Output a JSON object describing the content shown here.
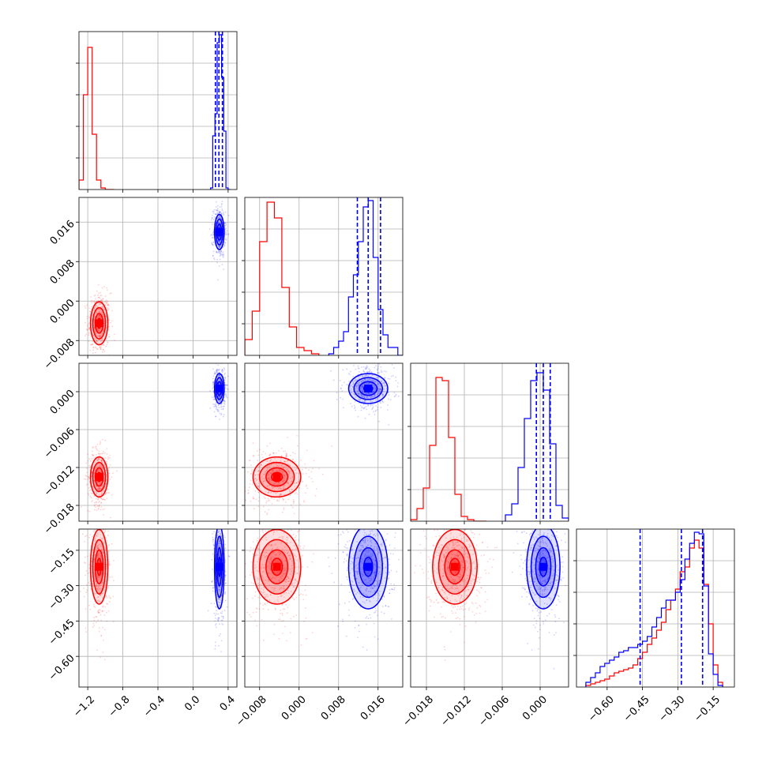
{
  "chart_data": {
    "type": "corner",
    "parameters": [
      {
        "name": "",
        "range": [
          -1.3,
          0.5
        ],
        "ticks": [
          -1.2,
          -0.8,
          -0.4,
          0.0,
          0.4
        ],
        "tick_labels": [
          "−1.2",
          "−0.8",
          "−0.4",
          "0.0",
          "0.4"
        ]
      },
      {
        "name": "",
        "range": [
          -0.011,
          0.021
        ],
        "ticks": [
          -0.008,
          0.0,
          0.008,
          0.016
        ],
        "tick_labels": [
          "−0.008",
          "0.000",
          "0.008",
          "0.016"
        ]
      },
      {
        "name": "",
        "range": [
          -0.0205,
          0.0045
        ],
        "ticks": [
          -0.018,
          -0.012,
          -0.006,
          0.0
        ],
        "tick_labels": [
          "−0.018",
          "−0.012",
          "−0.006",
          "0.000"
        ]
      },
      {
        "name": "",
        "range": [
          -0.73,
          -0.06
        ],
        "ticks": [
          -0.6,
          -0.45,
          -0.3,
          -0.15
        ],
        "tick_labels": [
          "−0.60",
          "−0.45",
          "−0.30",
          "−0.15"
        ]
      }
    ],
    "series": [
      {
        "color": "#ff0000",
        "mean": [
          -1.07,
          -0.0045,
          -0.0135,
          -0.22
        ],
        "std": [
          0.045,
          0.0022,
          0.0016,
          0.08
        ],
        "hist": [
          {
            "edges_x": [
              -1.3,
              -1.25,
              -1.2,
              -1.15,
              -1.1,
              -1.05,
              -1.0,
              -0.95,
              -0.9
            ],
            "values": [
              0.06,
              0.6,
              0.9,
              0.35,
              0.06,
              0.01,
              0.0,
              0.0
            ]
          },
          {
            "edges_x": [
              -0.011,
              -0.0095,
              -0.008,
              -0.0065,
              -0.005,
              -0.0035,
              -0.002,
              -0.0005,
              0.001,
              0.0025,
              0.004
            ],
            "values": [
              0.1,
              0.28,
              0.72,
              0.97,
              0.87,
              0.43,
              0.18,
              0.05,
              0.03,
              0.01
            ]
          },
          {
            "edges_x": [
              -0.0205,
              -0.0195,
              -0.0185,
              -0.0175,
              -0.0165,
              -0.0155,
              -0.0145,
              -0.0135,
              -0.0125,
              -0.0115,
              -0.0105,
              -0.0095,
              -0.0085
            ],
            "values": [
              0.01,
              0.08,
              0.21,
              0.48,
              0.91,
              0.89,
              0.53,
              0.17,
              0.03,
              0.01,
              0.0,
              0.0
            ]
          },
          {
            "edges_x": [
              -0.69,
              -0.67,
              -0.65,
              -0.63,
              -0.61,
              -0.59,
              -0.57,
              -0.55,
              -0.53,
              -0.51,
              -0.49,
              -0.47,
              -0.45,
              -0.43,
              -0.41,
              -0.39,
              -0.37,
              -0.35,
              -0.33,
              -0.31,
              -0.29,
              -0.27,
              -0.25,
              -0.23,
              -0.21,
              -0.19,
              -0.17,
              -0.15,
              -0.13,
              -0.11
            ],
            "values": [
              0.01,
              0.02,
              0.03,
              0.04,
              0.05,
              0.07,
              0.09,
              0.1,
              0.11,
              0.12,
              0.14,
              0.18,
              0.22,
              0.27,
              0.31,
              0.36,
              0.41,
              0.49,
              0.55,
              0.62,
              0.73,
              0.76,
              0.88,
              0.93,
              0.88,
              0.65,
              0.4,
              0.14,
              0.03
            ]
          }
        ],
        "quantiles": []
      },
      {
        "color": "#0000ff",
        "mean": [
          0.3,
          0.014,
          0.0005,
          -0.22
        ],
        "std": [
          0.025,
          0.0018,
          0.0012,
          0.09
        ],
        "hist": [
          {
            "edges_x": [
              0.2,
              0.225,
              0.25,
              0.275,
              0.3,
              0.325,
              0.35,
              0.375,
              0.4,
              0.425
            ],
            "values": [
              0.01,
              0.34,
              0.48,
              0.93,
              0.98,
              0.71,
              0.37,
              0.01,
              0.0
            ]
          },
          {
            "edges_x": [
              0.006,
              0.007,
              0.008,
              0.009,
              0.01,
              0.011,
              0.012,
              0.013,
              0.014,
              0.015,
              0.016,
              0.017,
              0.018,
              0.019,
              0.02,
              0.021
            ],
            "values": [
              0.01,
              0.05,
              0.09,
              0.15,
              0.37,
              0.51,
              0.72,
              0.94,
              0.98,
              0.62,
              0.29,
              0.13,
              0.05,
              0.05,
              0.0
            ]
          },
          {
            "edges_x": [
              -0.0055,
              -0.0045,
              -0.0035,
              -0.0025,
              -0.0015,
              -0.0005,
              0.0005,
              0.0015,
              0.0025,
              0.0035,
              0.0045
            ],
            "values": [
              0.04,
              0.11,
              0.34,
              0.65,
              0.89,
              0.94,
              0.83,
              0.49,
              0.1,
              0.02
            ]
          },
          {
            "edges_x": [
              -0.69,
              -0.67,
              -0.65,
              -0.63,
              -0.61,
              -0.59,
              -0.57,
              -0.55,
              -0.53,
              -0.51,
              -0.49,
              -0.47,
              -0.45,
              -0.43,
              -0.41,
              -0.39,
              -0.37,
              -0.35,
              -0.33,
              -0.31,
              -0.29,
              -0.27,
              -0.25,
              -0.23,
              -0.21,
              -0.19,
              -0.17,
              -0.15,
              -0.13,
              -0.11
            ],
            "values": [
              0.03,
              0.06,
              0.09,
              0.13,
              0.15,
              0.17,
              0.19,
              0.22,
              0.23,
              0.25,
              0.25,
              0.27,
              0.29,
              0.32,
              0.38,
              0.44,
              0.5,
              0.55,
              0.55,
              0.6,
              0.68,
              0.81,
              0.91,
              0.98,
              0.97,
              0.64,
              0.21,
              0.08,
              0.01
            ]
          }
        ],
        "quantiles": [
          [
            0.255,
            0.295,
            0.335
          ],
          [
            0.0118,
            0.014,
            0.0165
          ],
          [
            -0.0006,
            0.0005,
            0.0016
          ],
          [
            -0.46,
            -0.285,
            -0.195
          ]
        ]
      }
    ],
    "grid": true
  }
}
